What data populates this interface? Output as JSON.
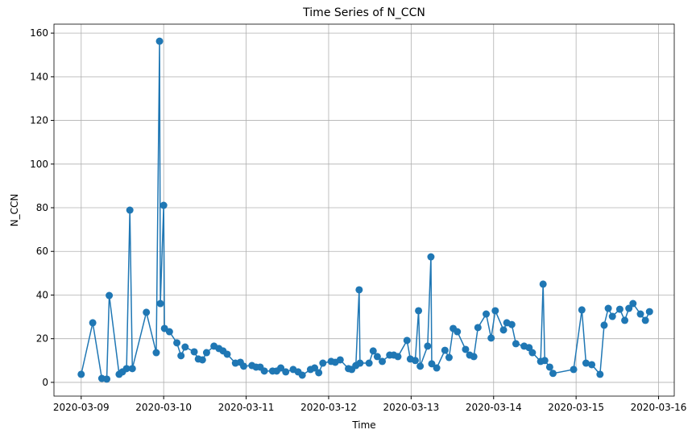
{
  "chart_data": {
    "type": "line",
    "title": "Time Series of N_CCN",
    "x_label": "Time",
    "y_label": "N_CCN",
    "color": "#1f77b4",
    "grid": true,
    "markers": true,
    "x": [
      0,
      0.14,
      0.25,
      0.31,
      0.34,
      0.46,
      0.5,
      0.55,
      0.59,
      0.62,
      0.79,
      0.91,
      0.95,
      0.96,
      1.0,
      1.01,
      1.07,
      1.16,
      1.21,
      1.26,
      1.37,
      1.42,
      1.47,
      1.52,
      1.61,
      1.67,
      1.72,
      1.77,
      1.87,
      1.93,
      1.97,
      2.07,
      2.12,
      2.17,
      2.22,
      2.32,
      2.37,
      2.42,
      2.48,
      2.57,
      2.63,
      2.68,
      2.78,
      2.83,
      2.88,
      2.93,
      3.03,
      3.08,
      3.14,
      3.24,
      3.28,
      3.33,
      3.37,
      3.38,
      3.49,
      3.54,
      3.59,
      3.65,
      3.74,
      3.79,
      3.84,
      3.95,
      3.99,
      4.05,
      4.09,
      4.11,
      4.2,
      4.24,
      4.25,
      4.31,
      4.41,
      4.46,
      4.51,
      4.56,
      4.66,
      4.71,
      4.76,
      4.81,
      4.91,
      4.97,
      5.02,
      5.12,
      5.16,
      5.22,
      5.27,
      5.37,
      5.43,
      5.47,
      5.57,
      5.6,
      5.62,
      5.68,
      5.72,
      5.97,
      6.07,
      6.12,
      6.19,
      6.29,
      6.34,
      6.39,
      6.44,
      6.53,
      6.59,
      6.64,
      6.69,
      6.78,
      6.84,
      6.89
    ],
    "values": [
      3.7,
      27.3,
      1.8,
      1.5,
      39.8,
      3.7,
      4.8,
      6.3,
      78.9,
      6.3,
      32.1,
      13.6,
      156.3,
      36.1,
      81.1,
      24.7,
      23.2,
      18.1,
      12.2,
      16.2,
      14.0,
      10.7,
      10.3,
      13.6,
      16.6,
      15.5,
      14.4,
      12.9,
      8.8,
      9.2,
      7.4,
      7.7,
      7.0,
      7.0,
      5.2,
      5.2,
      5.2,
      6.6,
      4.8,
      5.9,
      4.8,
      3.3,
      5.9,
      6.6,
      4.4,
      8.8,
      9.6,
      9.2,
      10.3,
      6.3,
      5.9,
      7.7,
      42.4,
      8.8,
      8.8,
      14.4,
      11.8,
      9.6,
      12.5,
      12.5,
      11.8,
      19.2,
      10.7,
      10.0,
      32.8,
      7.4,
      16.6,
      57.5,
      8.5,
      6.6,
      14.7,
      11.4,
      24.7,
      23.2,
      15.1,
      12.5,
      11.8,
      25.1,
      31.3,
      20.3,
      32.8,
      24.0,
      27.3,
      26.5,
      17.7,
      16.6,
      15.9,
      13.6,
      9.6,
      45.0,
      10.0,
      7.0,
      4.1,
      5.9,
      33.2,
      8.8,
      8.1,
      3.7,
      26.2,
      33.9,
      30.2,
      33.5,
      28.4,
      33.9,
      36.1,
      31.3,
      28.4,
      32.4
    ],
    "xlim": [
      -0.33,
      7.19
    ],
    "ylim": [
      -6.3,
      164.1
    ],
    "xticks": [
      {
        "value": 0,
        "label": "2020-03-09"
      },
      {
        "value": 1,
        "label": "2020-03-10"
      },
      {
        "value": 2,
        "label": "2020-03-11"
      },
      {
        "value": 3,
        "label": "2020-03-12"
      },
      {
        "value": 4,
        "label": "2020-03-13"
      },
      {
        "value": 5,
        "label": "2020-03-14"
      },
      {
        "value": 6,
        "label": "2020-03-15"
      },
      {
        "value": 7,
        "label": "2020-03-16"
      }
    ],
    "yticks": [
      0,
      20,
      40,
      60,
      80,
      100,
      120,
      140,
      160
    ]
  }
}
